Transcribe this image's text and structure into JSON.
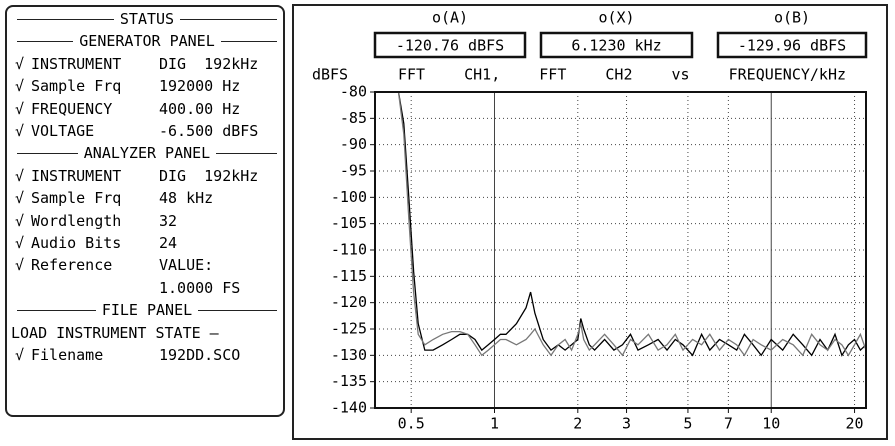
{
  "status": {
    "title": "STATUS",
    "generator": {
      "heading": "GENERATOR PANEL",
      "rows": [
        {
          "check": "√",
          "label": "INSTRUMENT",
          "value": "DIG  192kHz"
        },
        {
          "check": "√",
          "label": "Sample Frq",
          "value": "192000 Hz"
        },
        {
          "check": "√",
          "label": "FREQUENCY",
          "value": "400.00 Hz"
        },
        {
          "check": "√",
          "label": "VOLTAGE",
          "value": "-6.500 dBFS"
        }
      ]
    },
    "analyzer": {
      "heading": "ANALYZER PANEL",
      "rows": [
        {
          "check": "√",
          "label": "INSTRUMENT",
          "value": "DIG  192kHz"
        },
        {
          "check": "√",
          "label": "Sample Frq",
          "value": "48 kHz"
        },
        {
          "check": "√",
          "label": "Wordlength",
          "value": "32"
        },
        {
          "check": "√",
          "label": "Audio Bits",
          "value": "24"
        },
        {
          "check": "√",
          "label": "Reference",
          "value": "VALUE:",
          "value2": "1.0000 FS"
        }
      ]
    },
    "file": {
      "heading": "FILE PANEL",
      "subheading": "LOAD INSTRUMENT STATE",
      "rows": [
        {
          "check": "√",
          "label": "Filename",
          "value": "192DD.SCO"
        }
      ]
    }
  },
  "readouts": [
    {
      "label": "o(A)",
      "value": "-120.76 dBFS"
    },
    {
      "label": "o(X)",
      "value": "6.1230 kHz"
    },
    {
      "label": "o(B)",
      "value": "-129.96 dBFS"
    }
  ],
  "chart_data": {
    "type": "line",
    "title": "FFT CH1, FFT CH2 vs FREQUENCY/kHz",
    "y_label": "dBFS",
    "log_x": true,
    "grid": true,
    "xlim": [
      0.37,
      22
    ],
    "xticks": [
      0.5,
      1,
      2,
      3,
      5,
      7,
      10,
      20
    ],
    "ylim": [
      -140,
      -80
    ],
    "yticks": [
      -80,
      -85,
      -90,
      -95,
      -100,
      -105,
      -110,
      -115,
      -120,
      -125,
      -130,
      -135,
      -140
    ],
    "x": [
      0.45,
      0.47,
      0.49,
      0.51,
      0.53,
      0.56,
      0.6,
      0.65,
      0.7,
      0.75,
      0.8,
      0.85,
      0.9,
      0.95,
      1.0,
      1.05,
      1.1,
      1.2,
      1.3,
      1.35,
      1.4,
      1.5,
      1.6,
      1.7,
      1.8,
      1.9,
      2.0,
      2.05,
      2.1,
      2.2,
      2.3,
      2.5,
      2.7,
      2.9,
      3.1,
      3.3,
      3.6,
      3.9,
      4.2,
      4.5,
      4.8,
      5.2,
      5.6,
      6.0,
      6.5,
      7.0,
      7.5,
      8.0,
      8.6,
      9.2,
      10,
      11,
      12,
      13,
      14,
      15,
      16,
      17,
      18,
      19,
      20,
      21,
      22
    ],
    "series": [
      {
        "name": "CH1",
        "color": "#000000",
        "values": [
          -80,
          -86,
          -100,
          -114,
          -124,
          -129,
          -129,
          -128,
          -127,
          -126,
          -126,
          -127,
          -129,
          -128,
          -127,
          -126,
          -126,
          -124,
          -121,
          -118,
          -122,
          -127,
          -129,
          -128,
          -129,
          -128,
          -127,
          -123,
          -125,
          -128,
          -129,
          -127,
          -129,
          -128,
          -126,
          -129,
          -128,
          -127,
          -129,
          -127,
          -128,
          -130,
          -126,
          -129,
          -127,
          -128,
          -129,
          -126,
          -128,
          -130,
          -127,
          -129,
          -126,
          -128,
          -130,
          -127,
          -129,
          -126,
          -130,
          -128,
          -127,
          -129,
          -128
        ]
      },
      {
        "name": "CH2",
        "color": "#777777",
        "values": [
          -80,
          -88,
          -104,
          -118,
          -126,
          -128,
          -127,
          -126,
          -125.5,
          -125.5,
          -126,
          -128,
          -130,
          -129,
          -128,
          -127,
          -127,
          -128,
          -127,
          -126,
          -125,
          -128,
          -130,
          -128,
          -127,
          -129,
          -126,
          -124,
          -127,
          -129,
          -128,
          -126,
          -128,
          -130,
          -127,
          -128,
          -126,
          -129,
          -128,
          -126,
          -129,
          -127,
          -128,
          -126,
          -129,
          -127,
          -128,
          -130,
          -127,
          -128,
          -129,
          -127,
          -128,
          -130,
          -126,
          -128,
          -129,
          -127,
          -128,
          -130,
          -128,
          -126,
          -129
        ]
      }
    ]
  }
}
